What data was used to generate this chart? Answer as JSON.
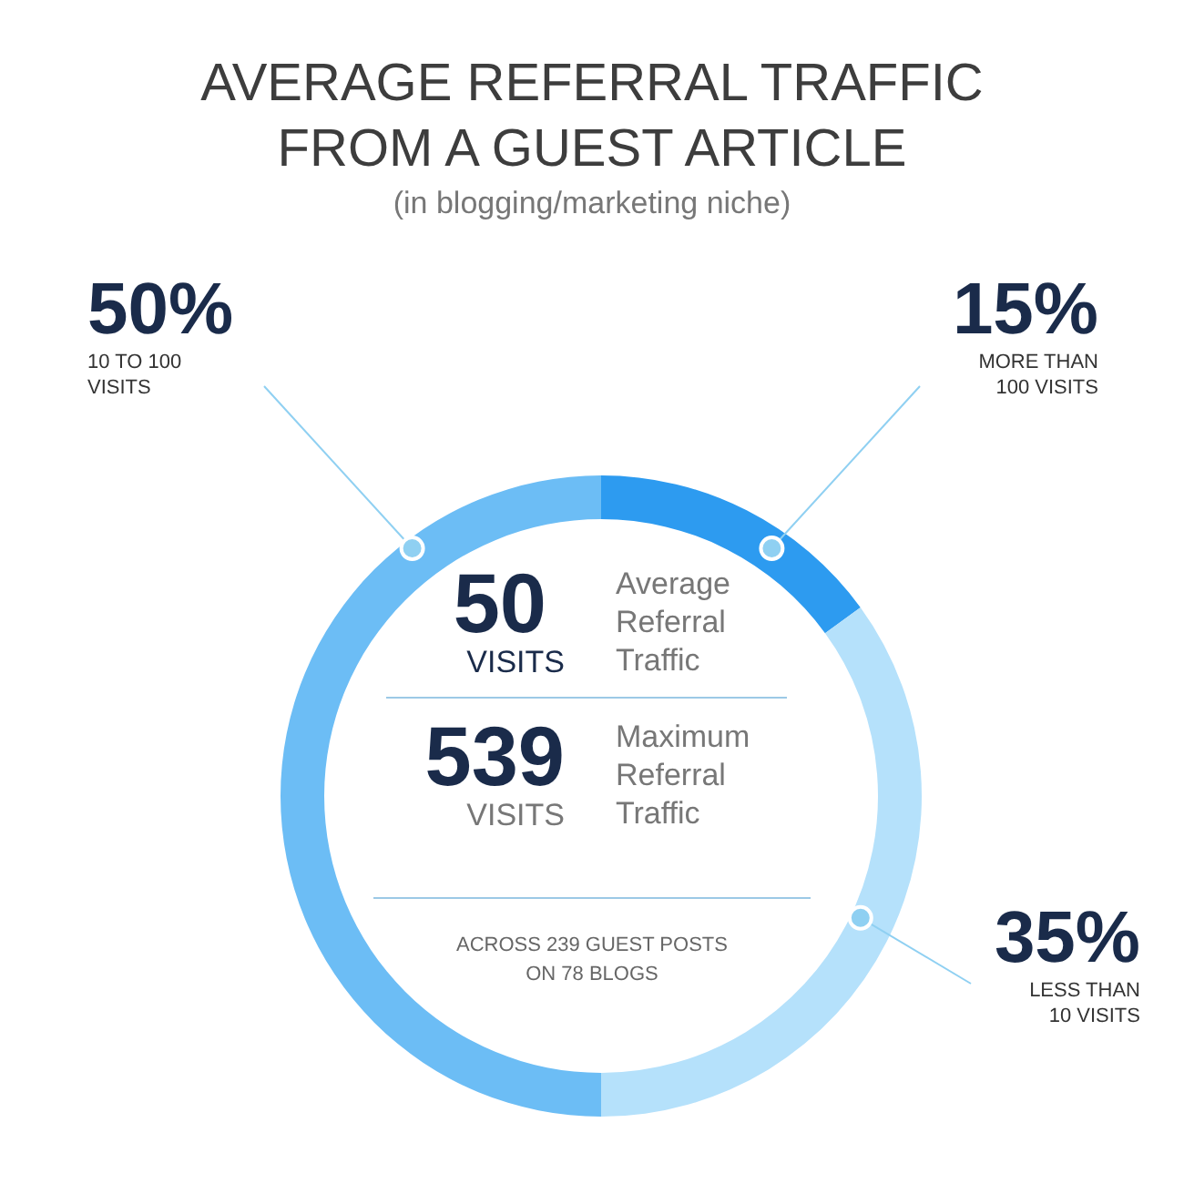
{
  "chart_data": {
    "type": "donut",
    "title": "AVERAGE REFERRAL TRAFFIC FROM A GUEST ARTICLE",
    "subtitle": "(in blogging/marketing niche)",
    "categories": [
      "MORE THAN 100 VISITS",
      "LESS THAN 10 VISITS",
      "10 TO 100 VISITS"
    ],
    "values": [
      15,
      35,
      50
    ],
    "value_labels": [
      "15%",
      "35%",
      "50%"
    ],
    "colors": [
      "#2d9bf0",
      "#b5e1fb",
      "#6cbdf5"
    ],
    "annotations": [
      "50",
      "VISITS",
      "Average Referral Traffic",
      "539",
      "VISITS",
      "Maximum Referral Traffic",
      "ACROSS 239 GUEST POSTS ON 78 BLOGS"
    ],
    "legend": false
  }
}
